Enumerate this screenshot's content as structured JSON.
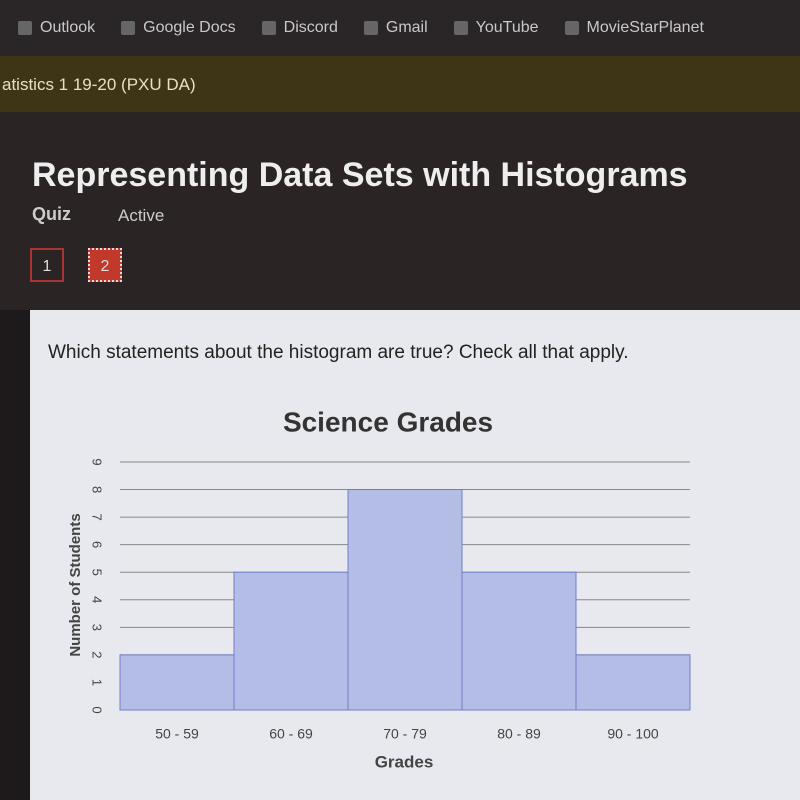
{
  "browser": {
    "bookmarks": [
      "Outlook",
      "Google Docs",
      "Discord",
      "Gmail",
      "YouTube",
      "MovieStarPlanet"
    ]
  },
  "course": "atistics 1 19-20 (PXU DA)",
  "header": {
    "title": "Representing Data Sets with Histograms",
    "kind": "Quiz",
    "status": "Active",
    "pages": [
      "1",
      "2"
    ]
  },
  "question": "Which statements about the histogram are true? Check all that apply.",
  "chart_data": {
    "type": "bar",
    "title": "Science Grades",
    "x_label": "Grades",
    "y_label": "Number of Students",
    "categories": [
      "50 - 59",
      "60 - 69",
      "70 - 79",
      "80 - 89",
      "90 - 100"
    ],
    "values": [
      2,
      5,
      8,
      5,
      2
    ],
    "color": "#b4bde6",
    "ylim": [
      0,
      9
    ],
    "yticks": [
      0,
      1,
      2,
      3,
      4,
      5,
      6,
      7,
      8,
      9
    ],
    "grid": true
  }
}
